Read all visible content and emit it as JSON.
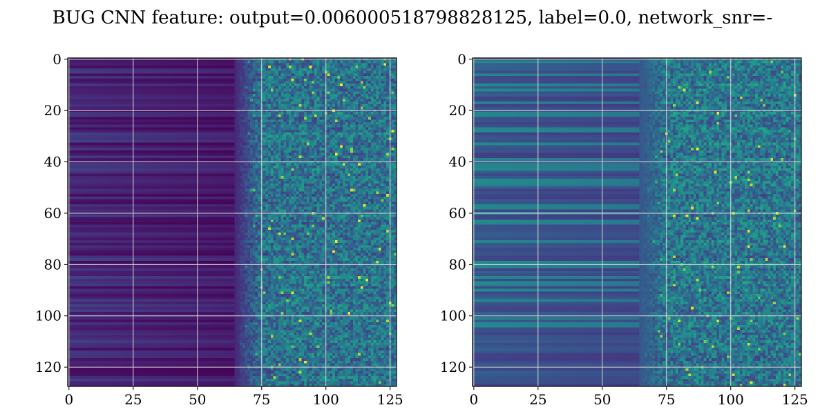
{
  "title": "BUG CNN feature: output=0.006000518798828125, label=0.0, network_snr=-",
  "colors": {
    "background": "#ffffff",
    "grid": "#d8d8d8",
    "colormap": "viridis"
  },
  "chart_data": [
    {
      "type": "heatmap",
      "rows": 128,
      "cols": 128,
      "xlim": [
        -0.5,
        127.5
      ],
      "ylim": [
        127.5,
        -0.5
      ],
      "xticks": [
        0,
        25,
        50,
        75,
        100,
        125
      ],
      "yticks": [
        0,
        20,
        40,
        60,
        80,
        100,
        120
      ],
      "grid": true,
      "colormap": "viridis",
      "description_values": {
        "low_freq_cols_0_75_level": 0.12,
        "high_freq_cols_75_127_level": 0.3,
        "noise_starts_col": 65
      }
    },
    {
      "type": "heatmap",
      "rows": 128,
      "cols": 128,
      "xlim": [
        -0.5,
        127.5
      ],
      "ylim": [
        127.5,
        -0.5
      ],
      "xticks": [
        0,
        25,
        50,
        75,
        100,
        125
      ],
      "yticks": [
        0,
        20,
        40,
        60,
        80,
        100,
        120
      ],
      "grid": true,
      "colormap": "viridis",
      "description_values": {
        "low_freq_cols_0_75_level": 0.28,
        "high_freq_cols_75_127_level": 0.32,
        "noise_starts_col": 65
      }
    }
  ]
}
